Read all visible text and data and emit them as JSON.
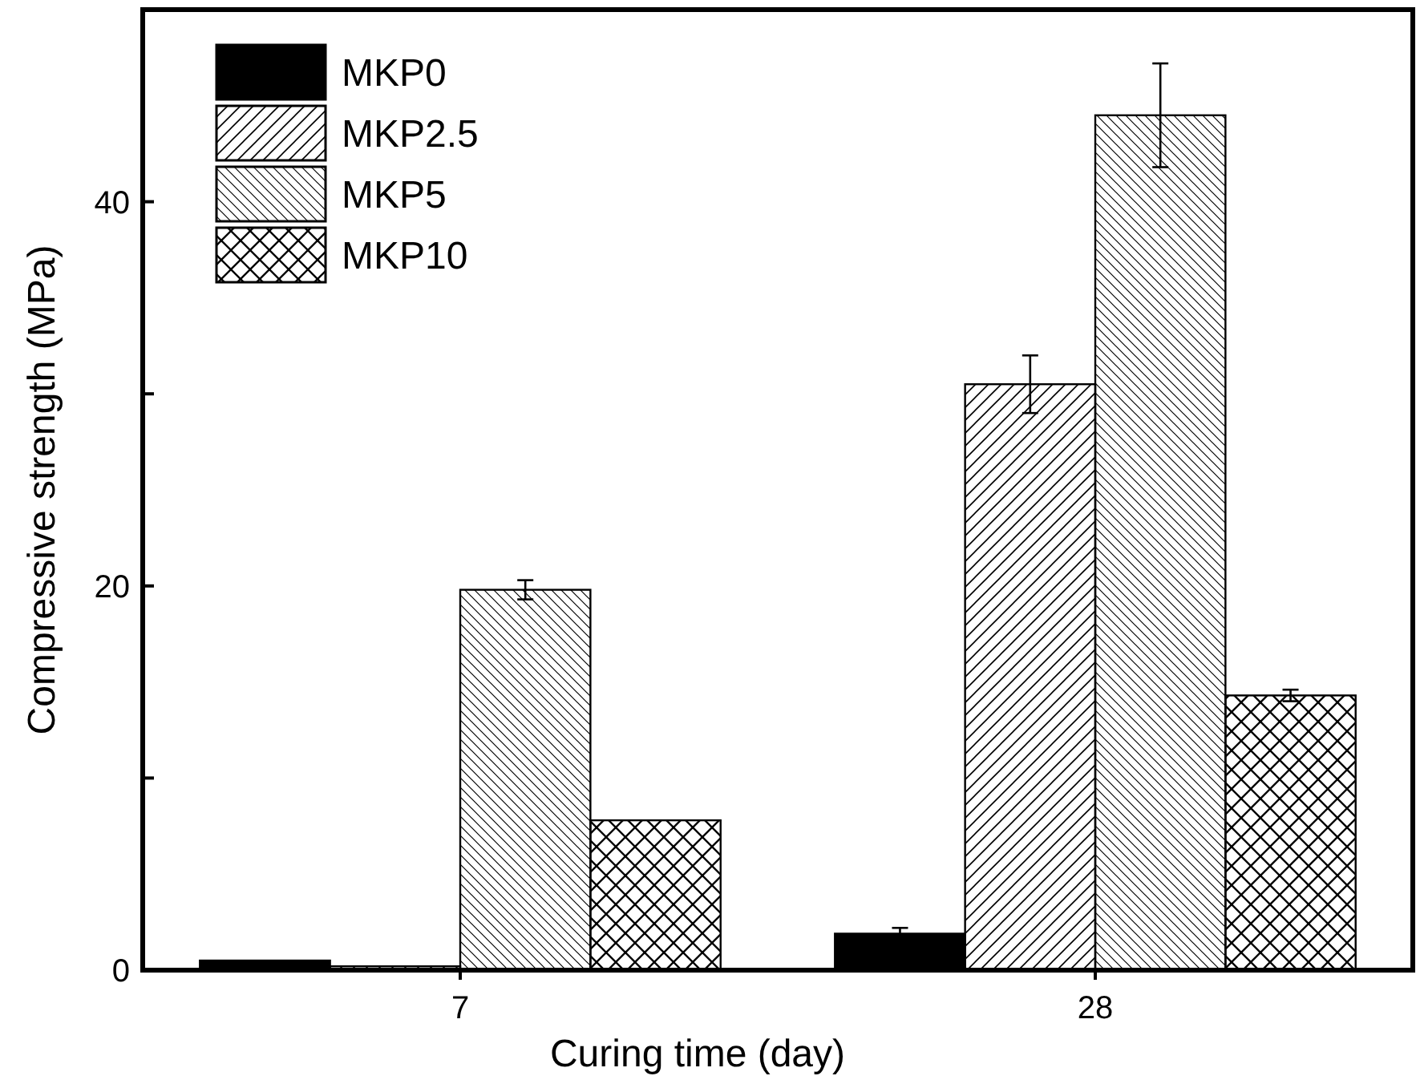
{
  "chart_data": {
    "type": "bar",
    "xlabel": "Curing time (day)",
    "ylabel": "Compressive strength (MPa)",
    "categories": [
      "7",
      "28"
    ],
    "series": [
      {
        "name": "MKP0",
        "color": "#000000",
        "values": [
          0.5,
          1.9
        ],
        "errors": [
          null,
          0.3
        ]
      },
      {
        "name": "MKP2.5",
        "color": "#000000",
        "values": [
          0.2,
          30.5
        ],
        "errors": [
          null,
          1.5
        ]
      },
      {
        "name": "MKP5",
        "color": "#000000",
        "values": [
          19.8,
          44.5
        ],
        "errors": [
          0.5,
          2.7
        ]
      },
      {
        "name": "MKP10",
        "color": "#000000",
        "values": [
          7.8,
          14.3
        ],
        "errors": [
          null,
          0.3
        ]
      }
    ],
    "ylim": [
      0,
      50
    ],
    "yticks": [
      0,
      {
        "value": 10,
        "label": null
      },
      20,
      {
        "value": 30,
        "label": null
      },
      40
    ],
    "legend": "top left",
    "grid": false
  }
}
